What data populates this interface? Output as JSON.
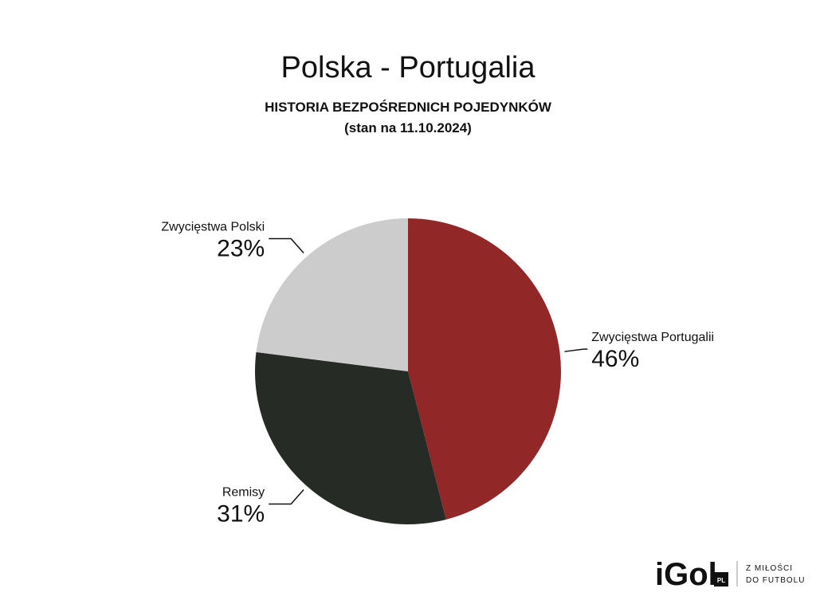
{
  "chart_data": {
    "type": "pie",
    "title": "Polska - Portugalia",
    "subtitle": "HISTORIA BEZPOŚREDNICH POJEDYNKÓW",
    "note": "(stan na 11.10.2024)",
    "categories": [
      "Zwycięstwa Portugalii",
      "Remisy",
      "Zwycięstwa Polski"
    ],
    "values": [
      46,
      31,
      23
    ],
    "value_labels": [
      "46%",
      "31%",
      "23%"
    ],
    "colors": [
      "#922727",
      "#272b26",
      "#cccccc"
    ]
  },
  "logo": {
    "name": "iGol",
    "badge": "PL",
    "tagline": [
      "Z MIŁOŚCI",
      "DO FUTBOLU"
    ]
  }
}
